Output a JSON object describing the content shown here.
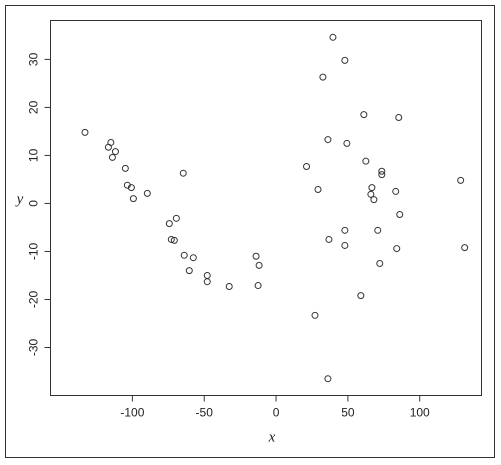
{
  "chart_data": {
    "type": "scatter",
    "x_label": "x",
    "y_label": "y",
    "series": [
      {
        "color": "#333333",
        "x": [
          -133,
          -115,
          -116.7,
          -111.8,
          -113.9,
          -104.9,
          -103.5,
          -100.7,
          -99.3,
          -89.6,
          -64.6,
          -74.3,
          -69.4,
          -72.9,
          -70.8,
          -63.9,
          -57.6,
          -60.4,
          -47.9,
          -47.9,
          -32.6,
          -13.9,
          -11.8,
          -12.5,
          39.6,
          47.9,
          32.6,
          36.1,
          49.3,
          61.1,
          85.4,
          21.2,
          62.5,
          73.6,
          73.6,
          29.2,
          66.7,
          66.0,
          68.1,
          83.3,
          128.5,
          86.1,
          36.8,
          47.9,
          47.9,
          70.8,
          72.2,
          84.0,
          131.3,
          59.0,
          27.1,
          36.1
        ],
        "values": [
          14.8,
          12.7,
          11.7,
          10.8,
          9.6,
          7.3,
          3.8,
          3.3,
          1.0,
          2.1,
          6.3,
          -4.2,
          -3.1,
          -7.5,
          -7.7,
          -10.8,
          -11.3,
          -14.0,
          -15.0,
          -16.3,
          -17.3,
          -11.0,
          -12.9,
          -17.1,
          34.6,
          29.8,
          26.3,
          13.3,
          12.5,
          18.5,
          17.9,
          7.7,
          8.8,
          6.7,
          6.0,
          2.9,
          3.3,
          1.9,
          0.8,
          2.5,
          4.8,
          -2.3,
          -7.5,
          -5.6,
          -8.75,
          -5.6,
          -12.5,
          -9.4,
          -9.2,
          -19.2,
          -23.3,
          -36.5
        ]
      }
    ],
    "xlim": [
      -157,
      143
    ],
    "ylim": [
      -40,
      38.1
    ],
    "xticks": [
      -100,
      -50,
      0,
      50,
      100
    ],
    "yticks": [
      -30,
      -20,
      -10,
      0,
      10,
      20,
      30
    ]
  }
}
